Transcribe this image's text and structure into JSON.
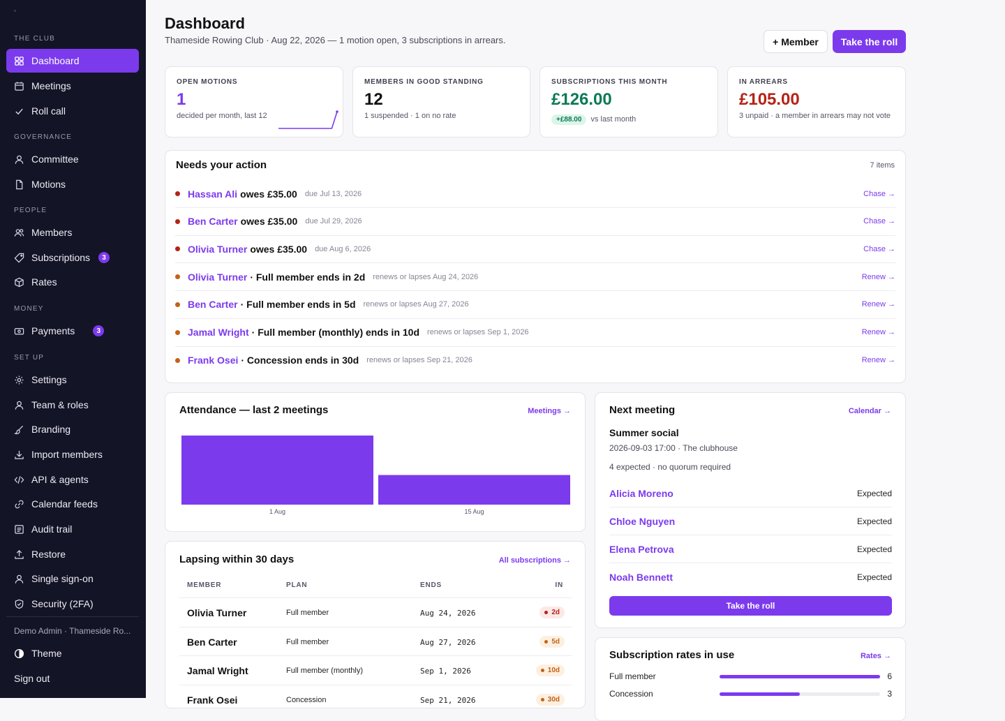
{
  "sidebar": {
    "sections": {
      "club": "THE CLUB",
      "governance": "GOVERNANCE",
      "people": "PEOPLE",
      "money": "MONEY",
      "setup": "SET UP"
    },
    "items": {
      "dashboard": "Dashboard",
      "meetings": "Meetings",
      "roll_call": "Roll call",
      "committee": "Committee",
      "motions": "Motions",
      "members": "Members",
      "subscriptions": "Subscriptions",
      "subscriptions_badge": "3",
      "rates": "Rates",
      "payments": "Payments",
      "payments_badge": "3",
      "settings": "Settings",
      "team_roles": "Team & roles",
      "branding": "Branding",
      "import_members": "Import members",
      "api_agents": "API & agents",
      "calendar_feeds": "Calendar feeds",
      "audit_trail": "Audit trail",
      "restore": "Restore",
      "single_sign_on": "Single sign-on",
      "security_2fa": "Security (2FA)"
    },
    "user": "Demo Admin · Thameside Ro...",
    "theme": "Theme",
    "sign_out": "Sign out"
  },
  "header": {
    "title": "Dashboard",
    "subtitle": "Thameside Rowing Club · Aug 22, 2026 — 1 motion open, 3 subscriptions in arrears.",
    "add_member": "+ Member",
    "take_roll": "Take the roll"
  },
  "stats": {
    "open_motions": {
      "label": "OPEN MOTIONS",
      "value": "1",
      "note": "decided per month, last 12",
      "sparkline": [
        0,
        0,
        0,
        0,
        0,
        0,
        0,
        0,
        0,
        0,
        0,
        1
      ]
    },
    "good_standing": {
      "label": "MEMBERS IN GOOD STANDING",
      "value": "12",
      "note": "1 suspended · 1 on no rate"
    },
    "subs_month": {
      "label": "SUBSCRIPTIONS THIS MONTH",
      "value": "£126.00",
      "delta": "+£88.00",
      "note": "vs last month"
    },
    "arrears": {
      "label": "IN ARREARS",
      "value": "£105.00",
      "note": "3 unpaid · a member in arrears may not vote"
    }
  },
  "actions": {
    "title": "Needs your action",
    "count": "7 items",
    "rows": [
      {
        "name": "Hassan Ali",
        "text": "owes £35.00",
        "meta": "due Jul 13, 2026",
        "link": "Chase →",
        "level": "red"
      },
      {
        "name": "Ben Carter",
        "text": "owes £35.00",
        "meta": "due Jul 29, 2026",
        "link": "Chase →",
        "level": "red"
      },
      {
        "name": "Olivia Turner",
        "text": "owes £35.00",
        "meta": "due Aug 6, 2026",
        "link": "Chase →",
        "level": "red"
      },
      {
        "name": "Olivia Turner",
        "text": "· Full member ends in 2d",
        "meta": "renews or lapses Aug 24, 2026",
        "link": "Renew →",
        "level": "amber"
      },
      {
        "name": "Ben Carter",
        "text": "· Full member ends in 5d",
        "meta": "renews or lapses Aug 27, 2026",
        "link": "Renew →",
        "level": "amber"
      },
      {
        "name": "Jamal Wright",
        "text": "· Full member (monthly) ends in 10d",
        "meta": "renews or lapses Sep 1, 2026",
        "link": "Renew →",
        "level": "amber"
      },
      {
        "name": "Frank Osei",
        "text": "· Concession ends in 30d",
        "meta": "renews or lapses Sep 21, 2026",
        "link": "Renew →",
        "level": "amber"
      }
    ]
  },
  "attendance": {
    "title": "Attendance — last 2 meetings",
    "link": "Meetings →"
  },
  "chart_data": {
    "type": "bar",
    "categories": [
      "1 Aug",
      "15 Aug"
    ],
    "values": [
      7,
      3
    ],
    "ylim": [
      0,
      7
    ],
    "grid": false,
    "legend": "none",
    "bar_color": "#7c3aed"
  },
  "next_meeting": {
    "title": "Next meeting",
    "link": "Calendar →",
    "name": "Summer social",
    "when": "2026-09-03 17:00 · The clubhouse",
    "expected": "4 expected · no quorum required",
    "attendees": [
      {
        "name": "Alicia Moreno",
        "status": "Expected"
      },
      {
        "name": "Chloe Nguyen",
        "status": "Expected"
      },
      {
        "name": "Elena Petrova",
        "status": "Expected"
      },
      {
        "name": "Noah Bennett",
        "status": "Expected"
      }
    ],
    "button": "Take the roll"
  },
  "lapsing": {
    "title": "Lapsing within 30 days",
    "link": "All subscriptions →",
    "columns": [
      "MEMBER",
      "PLAN",
      "ENDS",
      "IN"
    ],
    "rows": [
      {
        "member": "Olivia Turner",
        "plan": "Full member",
        "ends": "Aug 24, 2026",
        "in": "2d",
        "level": "red"
      },
      {
        "member": "Ben Carter",
        "plan": "Full member",
        "ends": "Aug 27, 2026",
        "in": "5d",
        "level": "amber"
      },
      {
        "member": "Jamal Wright",
        "plan": "Full member (monthly)",
        "ends": "Sep 1, 2026",
        "in": "10d",
        "level": "amber"
      },
      {
        "member": "Frank Osei",
        "plan": "Concession",
        "ends": "Sep 21, 2026",
        "in": "30d",
        "level": "amber"
      }
    ]
  },
  "rates": {
    "title": "Subscription rates in use",
    "link": "Rates →",
    "max": 6,
    "rows": [
      {
        "name": "Full member",
        "count": "6",
        "value": 6
      },
      {
        "name": "Concession",
        "count": "3",
        "value": 3
      }
    ]
  },
  "colors": {
    "accent": "#7c3aed",
    "sidebar_bg": "#141427",
    "danger": "#b42318",
    "success": "#0e7a55",
    "warning": "#c2621a"
  }
}
